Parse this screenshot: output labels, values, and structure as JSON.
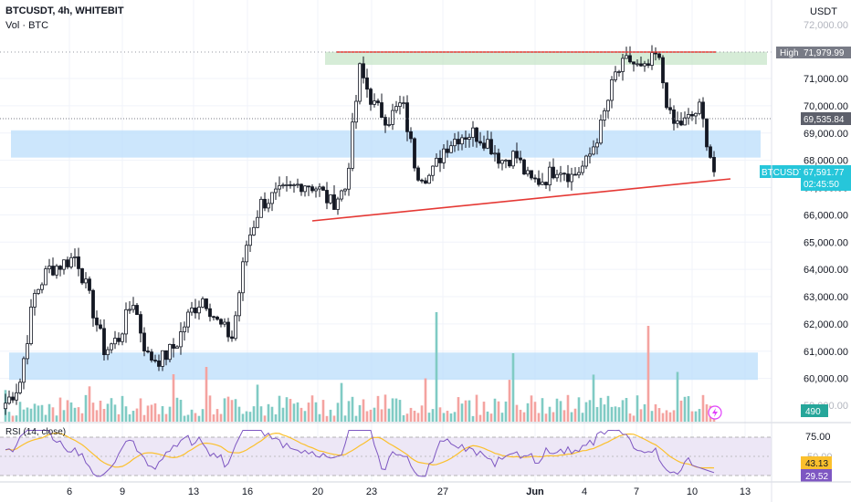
{
  "header": {
    "symbol_line": "BTCUSDT, 4h, WHITEBIT",
    "volume_label": "Vol · BTC",
    "currency": "USDT"
  },
  "price_axis": {
    "ticks": [
      "71,000.00",
      "70,000.00",
      "69,000.00",
      "68,000.00",
      "67,000.00",
      "66,000.00",
      "65,000.00",
      "64,000.00",
      "63,000.00",
      "62,000.00",
      "61,000.00",
      "60,000.00"
    ],
    "tick_values": [
      71000,
      70000,
      69000,
      68000,
      67000,
      66000,
      65000,
      64000,
      63000,
      62000,
      61000,
      60000
    ],
    "partial_top_label": "72,000.00",
    "partial_bottom_label": "59,000.00"
  },
  "badges": {
    "high_label": "High",
    "high_value": "71,979.99",
    "prev_close_value": "69,535.84",
    "symbol": "BTCUSDT",
    "last_price": "67,591.77",
    "countdown": "02:45:50",
    "volume_value": "490"
  },
  "rsi": {
    "label": "RSI (14, close)",
    "upper_level": "75.00",
    "mid_label": "50.00",
    "ma_value": "43.13",
    "rsi_value": "29.52"
  },
  "time_axis": {
    "labels": [
      "6",
      "9",
      "13",
      "16",
      "20",
      "23",
      "27",
      "Jun",
      "4",
      "7",
      "10",
      "13"
    ]
  },
  "chart_data": {
    "type": "candlestick",
    "symbol": "BTCUSDT",
    "interval": "4h",
    "exchange": "WHITEBIT",
    "price_range": [
      58800,
      72600
    ],
    "recorded_high": 71979.99,
    "previous_close_level": 69535.84,
    "last_price": 67591.77,
    "zones": [
      {
        "from": 71500,
        "to": 71980,
        "color": "#c8e6c9"
      },
      {
        "from": 68100,
        "to": 69100,
        "color": "#bbdefb"
      },
      {
        "from": 59950,
        "to": 60950,
        "color": "#bbdefb"
      }
    ],
    "resistance_line": {
      "start": "May 21",
      "end": "Jun 9",
      "price": 71980
    },
    "support_line": {
      "start": [
        "May 20",
        65800
      ],
      "end": [
        "Jun 11",
        67350
      ]
    },
    "price_path": [
      [
        "May 2",
        59100
      ],
      [
        "May 3",
        59800
      ],
      [
        "May 4",
        63000
      ],
      [
        "May 5",
        64000
      ],
      [
        "May 6",
        64200
      ],
      [
        "May 7",
        64500
      ],
      [
        "May 8",
        62800
      ],
      [
        "May 9",
        61000
      ],
      [
        "May 10",
        61500
      ],
      [
        "May 11",
        62900
      ],
      [
        "May 12",
        60800
      ],
      [
        "May 13",
        60700
      ],
      [
        "May 14",
        61200
      ],
      [
        "May 15",
        62400
      ],
      [
        "May 16",
        63000
      ],
      [
        "May 17",
        62000
      ],
      [
        "May 18",
        61500
      ],
      [
        "May 19",
        64900
      ],
      [
        "May 20",
        66400
      ],
      [
        "May 21",
        66700
      ],
      [
        "May 22",
        66900
      ],
      [
        "May 23",
        67200
      ],
      [
        "May 24",
        67000
      ],
      [
        "May 25",
        66400
      ],
      [
        "May 26",
        67000
      ],
      [
        "May 27",
        71300
      ],
      [
        "May 28",
        70000
      ],
      [
        "May 29",
        69500
      ],
      [
        "May 30",
        70100
      ],
      [
        "May 31",
        67600
      ],
      [
        "Jun 1",
        67400
      ],
      [
        "Jun 2",
        68500
      ],
      [
        "Jun 3",
        68900
      ],
      [
        "Jun 4",
        69000
      ],
      [
        "Jun 5",
        68700
      ],
      [
        "Jun 6",
        68000
      ],
      [
        "Jun 7",
        68200
      ],
      [
        "Jun 8",
        67200
      ],
      [
        "Jun 9",
        67300
      ],
      [
        "Jun 10",
        67800
      ],
      [
        "Jun 11",
        67400
      ],
      [
        "Jun 11",
        67900
      ],
      [
        "Jun 11",
        69200
      ],
      [
        "Jun 11",
        71100
      ],
      [
        "Jun 11",
        71700
      ],
      [
        "Jun 11",
        71200
      ],
      [
        "Jun 11",
        71900
      ],
      [
        "Jun 11",
        69300
      ],
      [
        "Jun 11",
        69400
      ],
      [
        "Jun 11",
        69900
      ],
      [
        "Jun 11",
        67600
      ]
    ],
    "volume_spikes": [
      {
        "date": "May 27",
        "value": 3.2
      },
      {
        "date": "May 21",
        "value": 2.4
      }
    ],
    "rsi": {
      "levels": [
        75,
        50,
        25
      ],
      "ma": 43.13,
      "value": 29.52
    }
  },
  "colors": {
    "up": "#26a69a",
    "down": "#ef5350",
    "up_volume": "#80cbc4",
    "down_volume": "#f4a3a0",
    "trend_line": "#e53935",
    "rsi_line": "#7e57c2",
    "rsi_ma": "#fbc02d",
    "badge_dark": "#787b86",
    "badge_blue": "#26c6da"
  }
}
